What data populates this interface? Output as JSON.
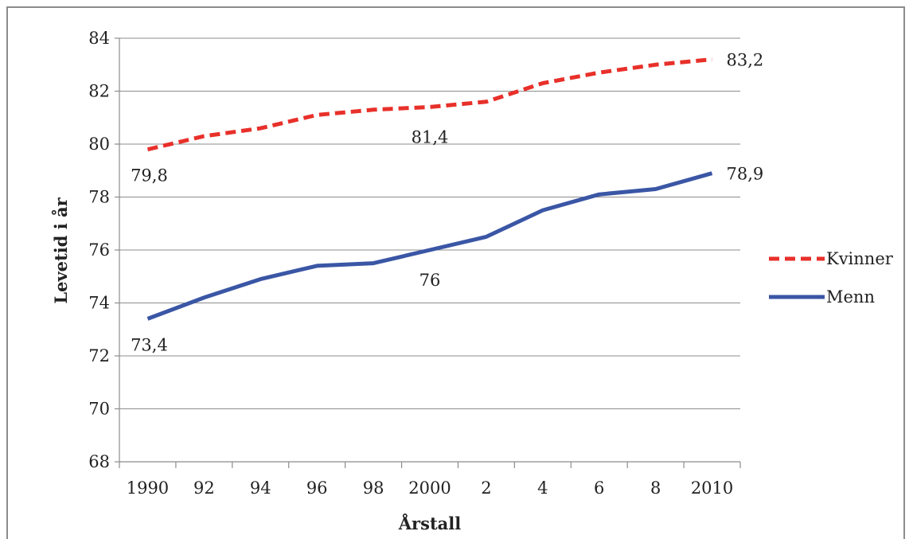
{
  "chart_data": {
    "type": "line",
    "title": "",
    "xlabel": "Årstall",
    "ylabel": "Levetid i år",
    "categories": [
      "1990",
      "92",
      "94",
      "96",
      "98",
      "2000",
      "2",
      "4",
      "6",
      "8",
      "2010"
    ],
    "ylim": [
      68,
      84
    ],
    "yticks": [
      "68",
      "70",
      "72",
      "74",
      "76",
      "78",
      "80",
      "82",
      "84"
    ],
    "grid": true,
    "legend_position": "right",
    "series": [
      {
        "name": "Kvinner",
        "color": "#e8302a",
        "style": "dashed",
        "values": [
          79.8,
          80.3,
          80.6,
          81.1,
          81.3,
          81.4,
          81.6,
          82.3,
          82.7,
          83.0,
          83.2
        ]
      },
      {
        "name": "Menn",
        "color": "#3a56a5",
        "style": "solid",
        "values": [
          73.4,
          74.2,
          74.9,
          75.4,
          75.5,
          76.0,
          76.5,
          77.5,
          78.1,
          78.3,
          78.9
        ]
      }
    ],
    "data_labels": [
      {
        "series": "Kvinner",
        "index": 0,
        "text": "79,8"
      },
      {
        "series": "Kvinner",
        "index": 5,
        "text": "81,4"
      },
      {
        "series": "Kvinner",
        "index": 10,
        "text": "83,2"
      },
      {
        "series": "Menn",
        "index": 0,
        "text": "73,4"
      },
      {
        "series": "Menn",
        "index": 5,
        "text": "76"
      },
      {
        "series": "Menn",
        "index": 10,
        "text": "78,9"
      }
    ]
  }
}
